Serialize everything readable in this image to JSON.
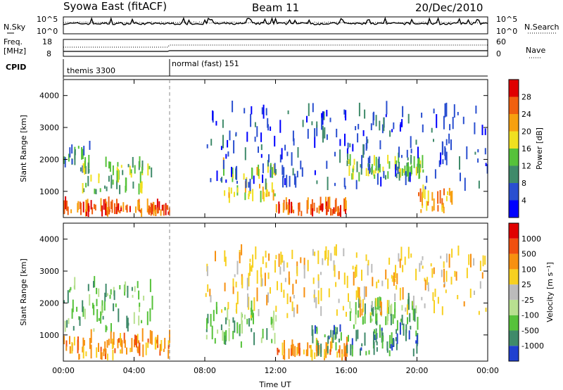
{
  "header": {
    "title": "Syowa East (fitACF)",
    "beam": "Beam 11",
    "date": "20/Dec/2010"
  },
  "top_panels": {
    "nsky_label": "N.Sky",
    "nsky_ticks": [
      "10^5",
      "10^0"
    ],
    "nsearch_label": "N.Search",
    "nsearch_ticks": [
      "10^5",
      "10^0"
    ],
    "freq_label_1": "Freq.",
    "freq_label_2": "[MHz]",
    "freq_ticks": [
      "18",
      "8"
    ],
    "nave_label": "Nave",
    "nave_ticks": [
      "60",
      "0"
    ],
    "cpid_label": "CPID",
    "cpid_modes": [
      {
        "name": "themis 3300",
        "start_hour": 0
      },
      {
        "name": "normal (fast) 151",
        "start_hour": 6
      }
    ]
  },
  "chart_data": [
    {
      "type": "heatmap",
      "name": "power",
      "xlabel": "",
      "ylabel": "Slant Range [km]",
      "x_range_hours": [
        0,
        24
      ],
      "ylim": [
        180,
        4500
      ],
      "y_ticks": [
        1000,
        2000,
        3000,
        4000
      ],
      "colorbar_label": "Power [dB]",
      "colorbar_ticks": [
        "4",
        "8",
        "12",
        "16",
        "20",
        "24",
        "28"
      ],
      "colorbar_colors": [
        "#0000ff",
        "#2a4fd0",
        "#3f8a6a",
        "#56c23a",
        "#f0e020",
        "#f7a010",
        "#f06010",
        "#e00000"
      ],
      "bands": [
        {
          "t0": 0.0,
          "t1": 1.5,
          "r0": 1500,
          "r1": 2400,
          "level": 2
        },
        {
          "t0": 1.0,
          "t1": 5.0,
          "r0": 900,
          "r1": 1800,
          "level": 3
        },
        {
          "t0": 0.0,
          "t1": 6.0,
          "r0": 200,
          "r1": 450,
          "level": 6
        },
        {
          "t0": 9.0,
          "t1": 12.0,
          "r0": 600,
          "r1": 1700,
          "level": 4
        },
        {
          "t0": 12.0,
          "t1": 16.0,
          "r0": 200,
          "r1": 450,
          "level": 6
        },
        {
          "t0": 16.0,
          "t1": 20.5,
          "r0": 1300,
          "r1": 1900,
          "level": 3
        },
        {
          "t0": 20.0,
          "t1": 22.0,
          "r0": 300,
          "r1": 900,
          "level": 5
        },
        {
          "t0": 8.0,
          "t1": 24.0,
          "r0": 1000,
          "r1": 3500,
          "level": 1
        }
      ]
    },
    {
      "type": "heatmap",
      "name": "velocity",
      "xlabel": "Time UT",
      "ylabel": "Slant Range [km]",
      "x_range_hours": [
        0,
        24
      ],
      "x_ticks": [
        "00:00",
        "04:00",
        "08:00",
        "12:00",
        "16:00",
        "20:00",
        "00:00"
      ],
      "ylim": [
        180,
        4500
      ],
      "y_ticks": [
        1000,
        2000,
        3000,
        4000
      ],
      "colorbar_label": "Velocity [m s⁻¹]",
      "colorbar_ticks": [
        "1000",
        "500",
        "100",
        "25",
        "-25",
        "-100",
        "-500",
        "-1000"
      ],
      "colorbar_colors": [
        "#2040d0",
        "#3f8a6a",
        "#56c23a",
        "#b8e090",
        "#bbbbbb",
        "#f7d020",
        "#f79010",
        "#f05010",
        "#e00000"
      ],
      "bands": [
        {
          "t0": 0.0,
          "t1": 5.0,
          "r0": 1000,
          "r1": 2500,
          "level": 2
        },
        {
          "t0": 0.0,
          "t1": 6.0,
          "r0": 200,
          "r1": 800,
          "level": 6
        },
        {
          "t0": 8.0,
          "t1": 12.0,
          "r0": 600,
          "r1": 1800,
          "level": 2
        },
        {
          "t0": 12.0,
          "t1": 16.0,
          "r0": 200,
          "r1": 600,
          "level": 6
        },
        {
          "t0": 16.0,
          "t1": 20.0,
          "r0": 1300,
          "r1": 1900,
          "level": 2
        },
        {
          "t0": 14.0,
          "t1": 20.0,
          "r0": 300,
          "r1": 1200,
          "level": 1
        },
        {
          "t0": 8.0,
          "t1": 24.0,
          "r0": 1500,
          "r1": 3500,
          "level": 5
        }
      ]
    }
  ]
}
